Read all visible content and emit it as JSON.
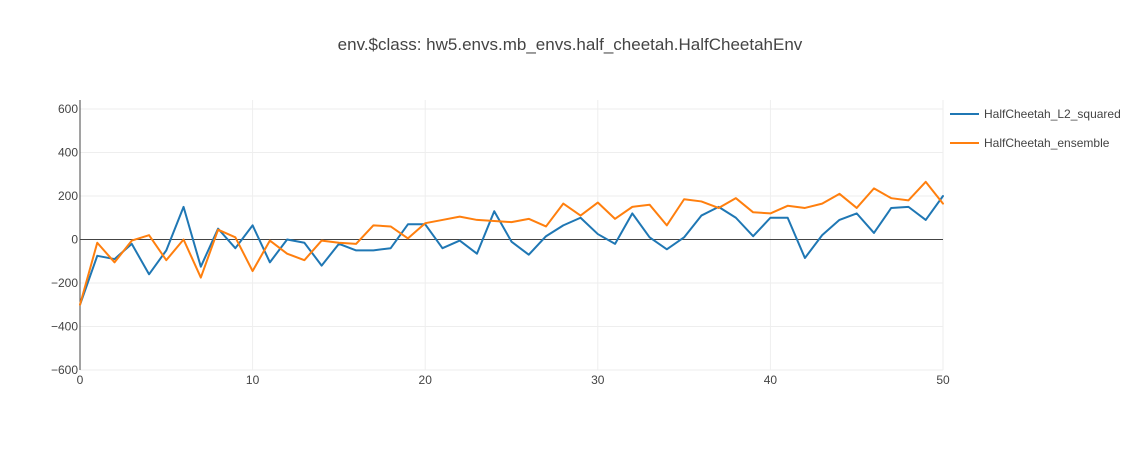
{
  "chart_data": {
    "type": "line",
    "title": "env.$class: hw5.envs.mb_envs.half_cheetah.HalfCheetahEnv",
    "xlabel": "",
    "ylabel": "",
    "xlim": [
      0,
      50
    ],
    "ylim": [
      -600,
      600
    ],
    "x_ticks": [
      0,
      10,
      20,
      30,
      40,
      50
    ],
    "y_ticks": [
      600,
      400,
      200,
      0,
      -200,
      -400,
      -600
    ],
    "x_tick_labels": [
      "0",
      "10",
      "20",
      "30",
      "40",
      "50"
    ],
    "y_tick_labels": [
      "600",
      "400",
      "200",
      "0",
      "−200",
      "−400",
      "−600"
    ],
    "grid": true,
    "legend_position": "top-right",
    "x": [
      0,
      1,
      2,
      3,
      4,
      5,
      6,
      7,
      8,
      9,
      10,
      11,
      12,
      13,
      14,
      15,
      16,
      17,
      18,
      19,
      20,
      21,
      22,
      23,
      24,
      25,
      26,
      27,
      28,
      29,
      30,
      31,
      32,
      33,
      34,
      35,
      36,
      37,
      38,
      39,
      40,
      41,
      42,
      43,
      44,
      45,
      46,
      47,
      48,
      49,
      50
    ],
    "series": [
      {
        "name": "HalfCheetah_L2_squared",
        "color": "#1f77b4",
        "values": [
          -300,
          -75,
          -90,
          -20,
          -160,
          -50,
          150,
          -125,
          50,
          -40,
          65,
          -105,
          0,
          -15,
          -120,
          -20,
          -50,
          -50,
          -40,
          70,
          70,
          -40,
          -5,
          -65,
          130,
          -10,
          -70,
          15,
          65,
          100,
          25,
          -20,
          120,
          10,
          -45,
          10,
          110,
          150,
          100,
          15,
          100,
          100,
          -85,
          20,
          90,
          120,
          30,
          145,
          150,
          90,
          200
        ]
      },
      {
        "name": "HalfCheetah_ensemble",
        "color": "#ff7f0e",
        "values": [
          -300,
          -15,
          -105,
          -5,
          20,
          -95,
          0,
          -175,
          45,
          10,
          -145,
          -5,
          -65,
          -95,
          -5,
          -15,
          -20,
          65,
          60,
          5,
          75,
          90,
          105,
          90,
          85,
          80,
          95,
          60,
          165,
          110,
          170,
          95,
          150,
          160,
          65,
          185,
          175,
          145,
          190,
          125,
          120,
          155,
          145,
          165,
          210,
          145,
          235,
          190,
          180,
          265,
          165
        ]
      }
    ]
  }
}
